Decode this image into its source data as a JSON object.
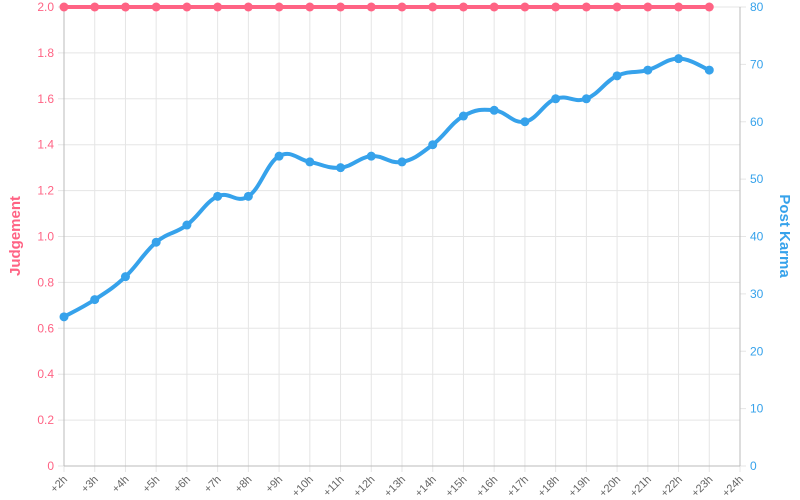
{
  "chart_data": {
    "type": "line",
    "categories": [
      "+2h",
      "+3h",
      "+4h",
      "+5h",
      "+6h",
      "+7h",
      "+8h",
      "+9h",
      "+10h",
      "+11h",
      "+12h",
      "+13h",
      "+14h",
      "+15h",
      "+16h",
      "+17h",
      "+18h",
      "+19h",
      "+20h",
      "+21h",
      "+22h",
      "+23h",
      "+24h"
    ],
    "series": [
      {
        "name": "Judgement",
        "color": "#ff6384",
        "axis": "y",
        "values": [
          2,
          2,
          2,
          2,
          2,
          2,
          2,
          2,
          2,
          2,
          2,
          2,
          2,
          2,
          2,
          2,
          2,
          2,
          2,
          2,
          2,
          2,
          null
        ]
      },
      {
        "name": "Post Karma",
        "color": "#36a2eb",
        "axis": "y2",
        "values": [
          26,
          29,
          33,
          39,
          42,
          47,
          47,
          54,
          53,
          52,
          54,
          53,
          56,
          61,
          62,
          60,
          64,
          64,
          68,
          69,
          71,
          69,
          null
        ]
      }
    ],
    "ylabel": "Judgement",
    "y2label": "Post Karma",
    "ylim": [
      0,
      2
    ],
    "yticks": [
      0,
      0.2,
      0.4,
      0.6,
      0.8,
      {
        "value": 1,
        "label": "1.0"
      },
      1.2,
      1.4,
      1.6,
      1.8,
      {
        "value": 2,
        "label": "2.0"
      }
    ],
    "y2lim": [
      0,
      80
    ],
    "y2ticks": [
      0,
      10,
      20,
      30,
      40,
      50,
      60,
      70,
      80
    ],
    "grid": true
  }
}
